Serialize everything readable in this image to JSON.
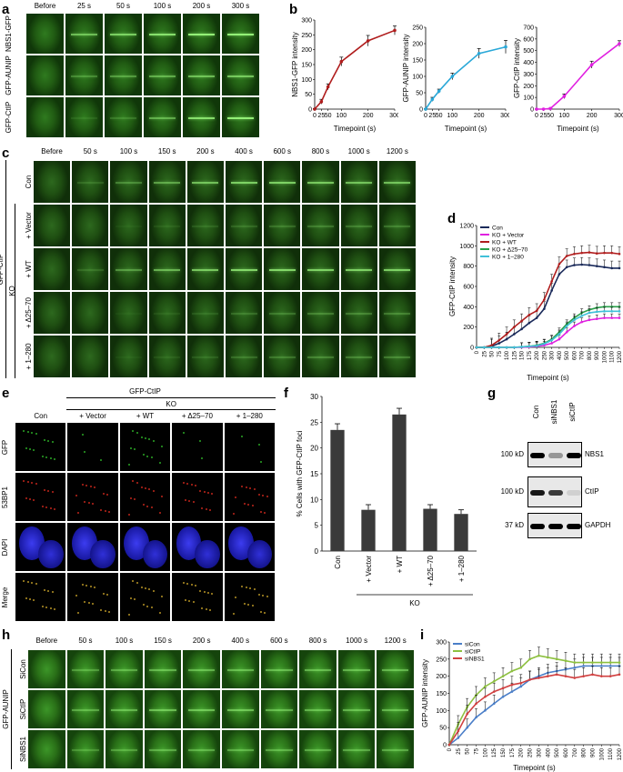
{
  "panels": {
    "a": {
      "label": "a",
      "timepoints": [
        "Before",
        "25 s",
        "50 s",
        "100 s",
        "200 s",
        "300 s"
      ],
      "rows": [
        "NBS1-GFP",
        "GFP-AUNIP",
        "GFP-CtIP"
      ],
      "stripe_levels": [
        [
          0,
          0.6,
          0.7,
          0.8,
          0.9,
          0.9
        ],
        [
          0,
          0.3,
          0.4,
          0.5,
          0.6,
          0.65
        ],
        [
          0,
          0.1,
          0.2,
          0.5,
          0.8,
          0.9
        ]
      ]
    },
    "b": {
      "label": "b"
    },
    "c": {
      "label": "c",
      "timepoints": [
        "Before",
        "50 s",
        "100 s",
        "150 s",
        "200 s",
        "400 s",
        "600 s",
        "800 s",
        "1000 s",
        "1200 s"
      ],
      "rows": [
        "Con",
        "+ Vector",
        "+ WT",
        "+ Δ25–70",
        "+ 1–280"
      ],
      "group_label": "KO",
      "side_label": "GFP-CtIP",
      "stripe_levels": [
        [
          0,
          0.2,
          0.4,
          0.6,
          0.8,
          0.9,
          0.9,
          0.85,
          0.8,
          0.8
        ],
        [
          0,
          0,
          0.05,
          0.1,
          0.15,
          0.2,
          0.25,
          0.3,
          0.3,
          0.3
        ],
        [
          0,
          0.2,
          0.5,
          0.7,
          0.85,
          0.95,
          0.95,
          0.9,
          0.9,
          0.9
        ],
        [
          0,
          0,
          0.05,
          0.1,
          0.15,
          0.25,
          0.3,
          0.35,
          0.35,
          0.35
        ],
        [
          0,
          0,
          0.05,
          0.1,
          0.15,
          0.25,
          0.3,
          0.35,
          0.35,
          0.35
        ]
      ]
    },
    "d": {
      "label": "d"
    },
    "e": {
      "label": "e",
      "header": "GFP-CtIP",
      "group_label": "KO",
      "columns": [
        "Con",
        "+ Vector",
        "+ WT",
        "+ Δ25–70",
        "+ 1–280"
      ],
      "rows": [
        "GFP",
        "53BP1",
        "DAPI",
        "Merge"
      ],
      "row_colors": [
        "#2fb82a",
        "#d42a1e",
        "#2a2ad8",
        "#c9a32a"
      ]
    },
    "f": {
      "label": "f"
    },
    "g": {
      "label": "g",
      "lanes": [
        "Con",
        "siNBS1",
        "siCtIP"
      ],
      "markers": [
        "100 kD",
        "100 kD",
        "37 kD"
      ],
      "proteins": [
        "NBS1",
        "CtIP",
        "GAPDH"
      ],
      "band_intensity": [
        [
          1.0,
          0.35,
          1.0
        ],
        [
          0.9,
          0.75,
          0.1
        ],
        [
          1.0,
          1.0,
          1.0
        ]
      ]
    },
    "h": {
      "label": "h",
      "timepoints": [
        "Before",
        "50 s",
        "100 s",
        "150 s",
        "200 s",
        "400 s",
        "600 s",
        "800 s",
        "1000 s",
        "1200 s"
      ],
      "rows": [
        "SiCon",
        "SiCtIP",
        "SiNBS1"
      ],
      "side_label": "GFP-AUNIP",
      "stripe_levels": [
        [
          0,
          0.5,
          0.6,
          0.7,
          0.7,
          0.7,
          0.7,
          0.7,
          0.7,
          0.7
        ],
        [
          0,
          0.6,
          0.7,
          0.8,
          0.8,
          0.8,
          0.7,
          0.7,
          0.7,
          0.7
        ],
        [
          0,
          0.4,
          0.5,
          0.6,
          0.6,
          0.6,
          0.6,
          0.6,
          0.6,
          0.6
        ]
      ]
    },
    "i": {
      "label": "i"
    }
  },
  "chart_data": [
    {
      "id": "b1",
      "type": "line",
      "x": [
        0,
        25,
        50,
        100,
        200,
        300
      ],
      "series": [
        {
          "values": [
            0,
            25,
            75,
            160,
            230,
            265
          ],
          "errors": [
            2,
            8,
            10,
            15,
            18,
            15
          ],
          "color": "#b01d1d"
        }
      ],
      "xlabel": "Timepoint (s)",
      "ylabel": "NBS1-GFP intensity",
      "ylim": [
        0,
        300
      ],
      "yticks": [
        0,
        50,
        100,
        150,
        200,
        250,
        300
      ],
      "xticks": [
        0,
        25,
        50,
        100,
        200,
        300
      ]
    },
    {
      "id": "b2",
      "type": "line",
      "x": [
        0,
        25,
        50,
        100,
        200,
        300
      ],
      "series": [
        {
          "values": [
            0,
            30,
            55,
            100,
            170,
            190
          ],
          "errors": [
            1,
            6,
            6,
            10,
            15,
            20
          ],
          "color": "#2aa8d8"
        }
      ],
      "xlabel": "Timepoint (s)",
      "ylabel": "GFP-AUNIP intensity",
      "ylim": [
        0,
        250
      ],
      "yticks": [
        0,
        50,
        100,
        150,
        200,
        250
      ],
      "xticks": [
        0,
        25,
        50,
        100,
        200,
        300
      ]
    },
    {
      "id": "b3",
      "type": "line",
      "x": [
        0,
        25,
        50,
        100,
        200,
        300
      ],
      "series": [
        {
          "values": [
            0,
            0,
            5,
            110,
            380,
            560
          ],
          "errors": [
            1,
            1,
            3,
            20,
            30,
            25
          ],
          "color": "#e020e0"
        }
      ],
      "xlabel": "Timepoint (s)",
      "ylabel": "GFP-CtIP intensity",
      "ylim": [
        0,
        700
      ],
      "yticks": [
        0,
        100,
        200,
        300,
        400,
        500,
        600,
        700
      ],
      "xticks": [
        0,
        25,
        50,
        100,
        200,
        300
      ]
    },
    {
      "id": "d",
      "type": "line",
      "x": [
        "0",
        "25",
        "50",
        "75",
        "100",
        "125",
        "150",
        "175",
        "200",
        "250",
        "300",
        "400",
        "500",
        "600",
        "700",
        "800",
        "900",
        "1000",
        "1100",
        "1200"
      ],
      "series": [
        {
          "name": "Con",
          "color": "#1a2a5a",
          "values": [
            0,
            0,
            10,
            40,
            80,
            130,
            180,
            240,
            290,
            380,
            560,
            720,
            790,
            810,
            815,
            810,
            800,
            790,
            780,
            780
          ]
        },
        {
          "name": "KO + Vector",
          "color": "#e020e0",
          "values": [
            0,
            0,
            0,
            0,
            0,
            0,
            0,
            5,
            10,
            20,
            40,
            80,
            150,
            210,
            250,
            270,
            280,
            290,
            290,
            290
          ]
        },
        {
          "name": "KO + WT",
          "color": "#b01d1d",
          "values": [
            0,
            0,
            20,
            70,
            130,
            200,
            260,
            320,
            360,
            470,
            650,
            820,
            900,
            920,
            930,
            935,
            925,
            930,
            930,
            920
          ]
        },
        {
          "name": "KO + Δ25–70",
          "color": "#2aa04a",
          "values": [
            0,
            0,
            0,
            0,
            0,
            0,
            5,
            10,
            20,
            40,
            80,
            150,
            230,
            290,
            340,
            370,
            390,
            400,
            400,
            400
          ]
        },
        {
          "name": "KO + 1–280",
          "color": "#40c0d8",
          "values": [
            0,
            0,
            0,
            0,
            0,
            0,
            5,
            10,
            15,
            35,
            70,
            130,
            210,
            270,
            310,
            340,
            350,
            355,
            355,
            355
          ]
        }
      ],
      "xlabel": "Timepoint (s)",
      "ylabel": "GFP-CtIP intensity",
      "ylim": [
        0,
        1200
      ],
      "yticks": [
        0,
        200,
        400,
        600,
        800,
        1000,
        1200
      ],
      "legend": "top-left"
    },
    {
      "id": "f",
      "type": "bar",
      "categories": [
        "Con",
        "+ Vector",
        "+ WT",
        "+ Δ25–70",
        "+ 1–280"
      ],
      "values": [
        23.5,
        8,
        26.5,
        8.2,
        7.2
      ],
      "errors": [
        1.2,
        1,
        1.2,
        0.8,
        0.8
      ],
      "ylabel": "% Cells with GFP-CtIP foci",
      "ylim": [
        0,
        30
      ],
      "yticks": [
        0,
        5,
        10,
        15,
        20,
        25,
        30
      ],
      "group_label": "KO"
    },
    {
      "id": "i",
      "type": "line",
      "x": [
        "0",
        "25",
        "50",
        "75",
        "100",
        "125",
        "150",
        "175",
        "200",
        "250",
        "300",
        "400",
        "500",
        "600",
        "700",
        "800",
        "900",
        "1000",
        "1100",
        "1200"
      ],
      "series": [
        {
          "name": "siCon",
          "color": "#4a7ec8",
          "values": [
            0,
            20,
            50,
            80,
            100,
            120,
            140,
            155,
            170,
            190,
            200,
            210,
            215,
            220,
            225,
            230,
            230,
            230,
            230,
            230
          ]
        },
        {
          "name": "siCtIP",
          "color": "#8dc040",
          "values": [
            0,
            60,
            110,
            145,
            170,
            185,
            200,
            215,
            225,
            250,
            260,
            255,
            250,
            245,
            240,
            240,
            240,
            240,
            240,
            240
          ]
        },
        {
          "name": "siNBS1",
          "color": "#d04040",
          "values": [
            0,
            40,
            90,
            120,
            140,
            155,
            165,
            175,
            180,
            190,
            195,
            200,
            205,
            200,
            195,
            200,
            205,
            200,
            200,
            205
          ]
        }
      ],
      "xlabel": "Timepoint (s)",
      "ylabel": "GFP-AUNIP intensity",
      "ylim": [
        0,
        300
      ],
      "yticks": [
        0,
        50,
        100,
        150,
        200,
        250,
        300
      ],
      "legend": "top-left"
    }
  ]
}
